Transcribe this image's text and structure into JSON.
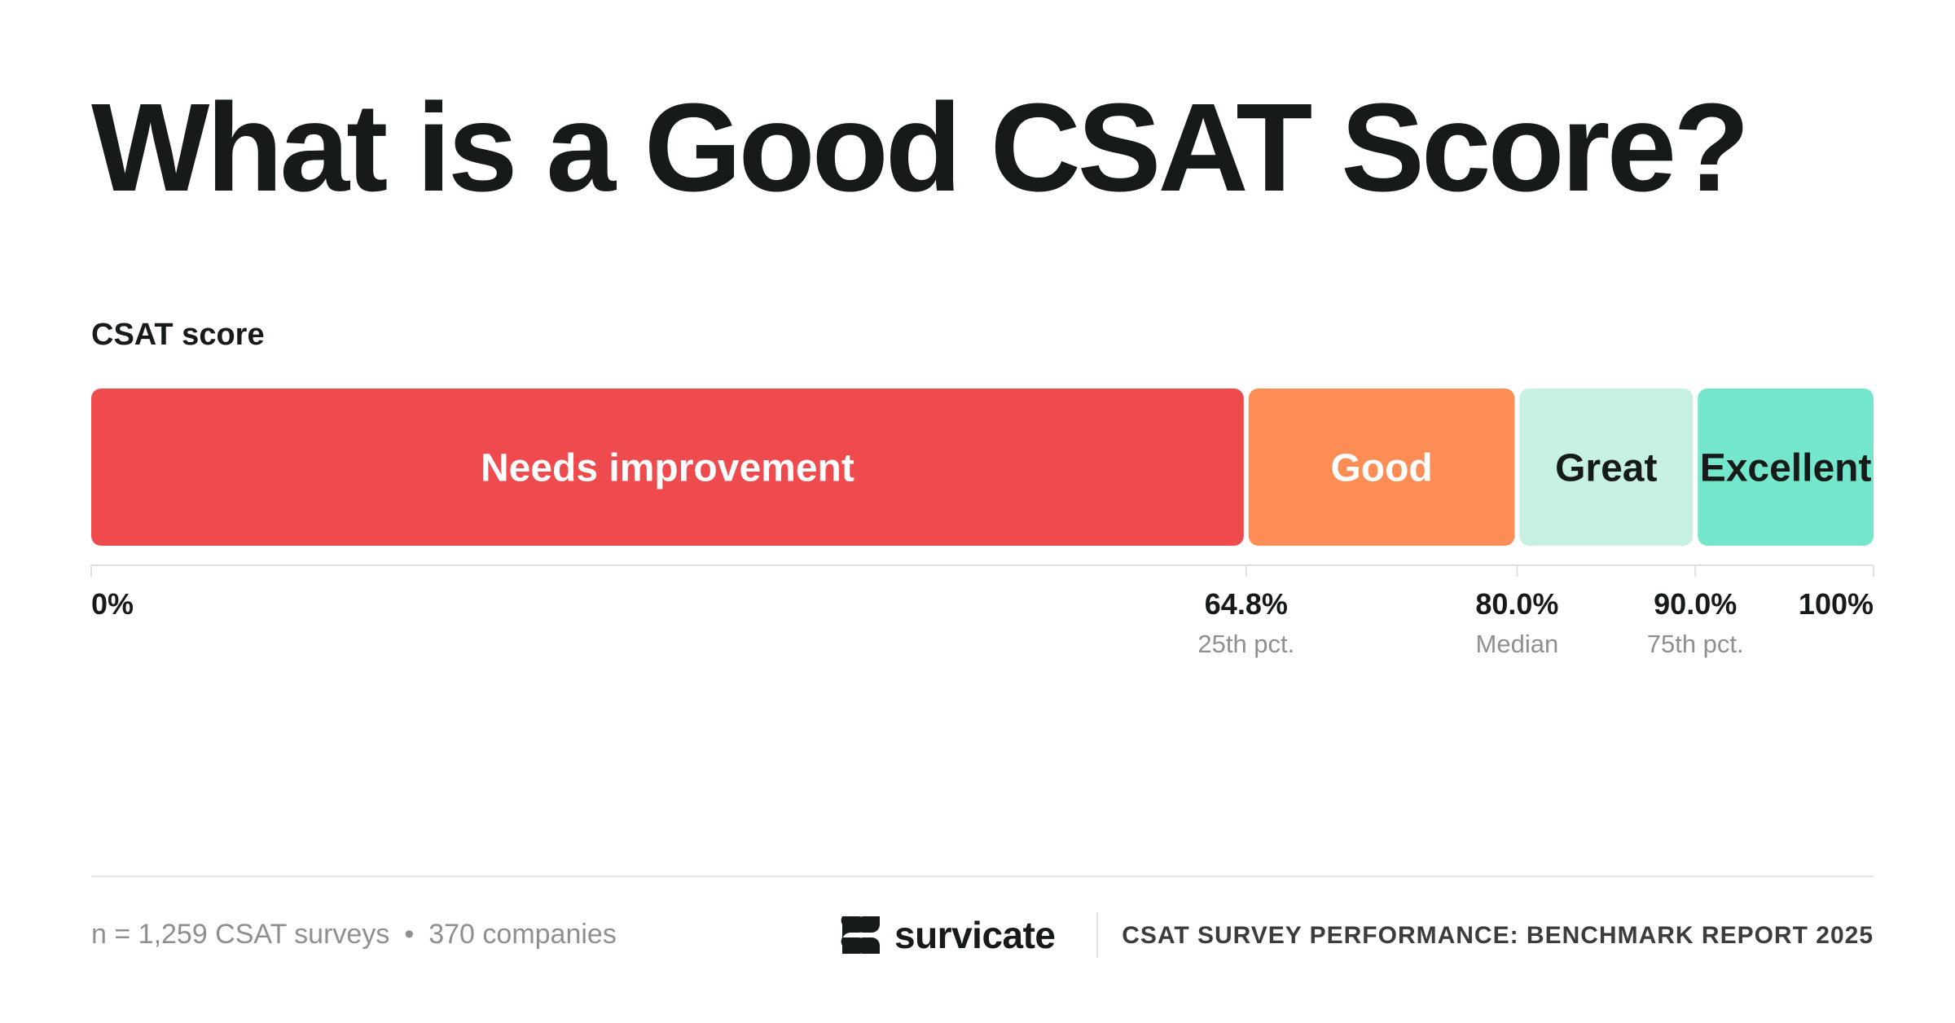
{
  "title": "What is a Good CSAT Score?",
  "chart_data": {
    "type": "bar",
    "orientation": "horizontal-stacked-range",
    "subtitle": "CSAT score",
    "xlim": [
      0,
      100
    ],
    "segments": [
      {
        "label": "Needs improvement",
        "start": 0,
        "end": 64.8,
        "color": "#ef4b4f",
        "text_color": "#ffffff"
      },
      {
        "label": "Good",
        "start": 64.8,
        "end": 80.0,
        "color": "#fe8c55",
        "text_color": "#ffffff"
      },
      {
        "label": "Great",
        "start": 80.0,
        "end": 90.0,
        "color": "#c6f1e2",
        "text_color": "#161a19"
      },
      {
        "label": "Excellent",
        "start": 90.0,
        "end": 100,
        "color": "#74e6cb",
        "text_color": "#161a19"
      }
    ],
    "ticks": [
      {
        "value": 0,
        "label": "0%",
        "sublabel": ""
      },
      {
        "value": 64.8,
        "label": "64.8%",
        "sublabel": "25th pct."
      },
      {
        "value": 80.0,
        "label": "80.0%",
        "sublabel": "Median"
      },
      {
        "value": 90.0,
        "label": "90.0%",
        "sublabel": "75th pct."
      },
      {
        "value": 100,
        "label": "100%",
        "sublabel": ""
      }
    ]
  },
  "footer": {
    "sample": "n = 1,259 CSAT surveys",
    "separator": "•",
    "companies": "370 companies",
    "brand": "survicate",
    "brand_icon": "survicate-logo-icon",
    "report": "CSAT SURVEY PERFORMANCE: BENCHMARK REPORT 2025"
  },
  "colors": {
    "text": "#161a19",
    "muted": "#8f8f8f",
    "axis": "#e0e0e0"
  }
}
